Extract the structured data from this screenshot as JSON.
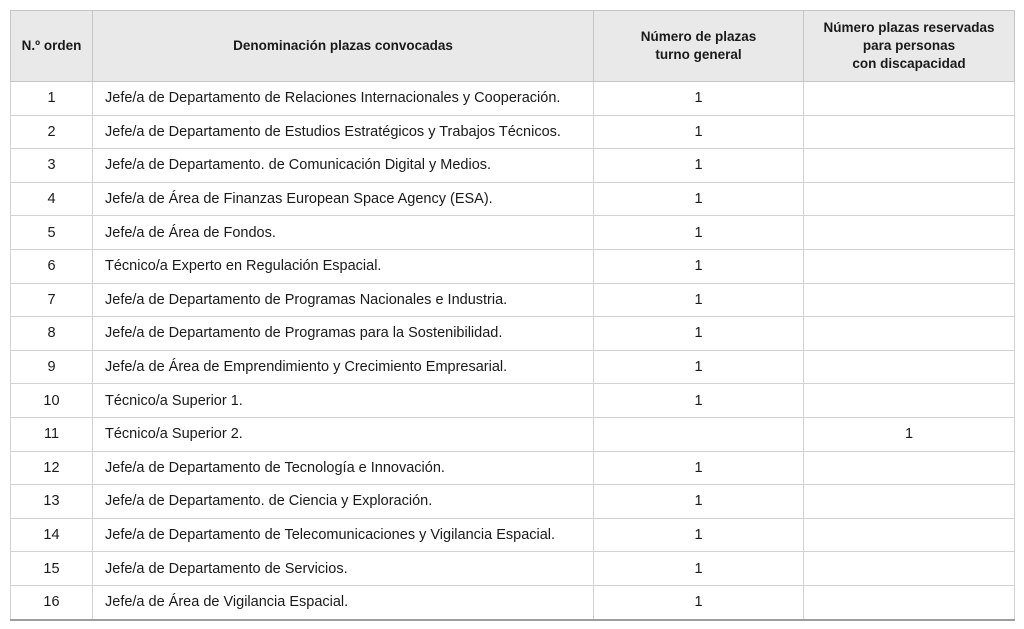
{
  "table": {
    "columns": [
      {
        "label": "N.º orden"
      },
      {
        "label": "Denominación plazas convocadas"
      },
      {
        "label": "Número de plazas\nturno general"
      },
      {
        "label": "Número plazas reservadas\npara personas\ncon discapacidad"
      }
    ],
    "rows": [
      {
        "orden": "1",
        "denominacion": "Jefe/a de Departamento de Relaciones Internacionales y Cooperación.",
        "general": "1",
        "discapacidad": ""
      },
      {
        "orden": "2",
        "denominacion": "Jefe/a de Departamento de Estudios Estratégicos y Trabajos Técnicos.",
        "general": "1",
        "discapacidad": ""
      },
      {
        "orden": "3",
        "denominacion": "Jefe/a de Departamento. de Comunicación Digital y Medios.",
        "general": "1",
        "discapacidad": ""
      },
      {
        "orden": "4",
        "denominacion": "Jefe/a de Área de Finanzas European Space Agency (ESA).",
        "general": "1",
        "discapacidad": ""
      },
      {
        "orden": "5",
        "denominacion": "Jefe/a de Área de Fondos.",
        "general": "1",
        "discapacidad": ""
      },
      {
        "orden": "6",
        "denominacion": "Técnico/a Experto en Regulación Espacial.",
        "general": "1",
        "discapacidad": ""
      },
      {
        "orden": "7",
        "denominacion": "Jefe/a de Departamento de Programas Nacionales e Industria.",
        "general": "1",
        "discapacidad": ""
      },
      {
        "orden": "8",
        "denominacion": "Jefe/a de Departamento de Programas para la Sostenibilidad.",
        "general": "1",
        "discapacidad": ""
      },
      {
        "orden": "9",
        "denominacion": "Jefe/a de Área de Emprendimiento y Crecimiento Empresarial.",
        "general": "1",
        "discapacidad": ""
      },
      {
        "orden": "10",
        "denominacion": "Técnico/a Superior 1.",
        "general": "1",
        "discapacidad": ""
      },
      {
        "orden": "11",
        "denominacion": "Técnico/a Superior 2.",
        "general": "",
        "discapacidad": "1"
      },
      {
        "orden": "12",
        "denominacion": "Jefe/a de Departamento de Tecnología e Innovación.",
        "general": "1",
        "discapacidad": ""
      },
      {
        "orden": "13",
        "denominacion": "Jefe/a de Departamento. de Ciencia y Exploración.",
        "general": "1",
        "discapacidad": ""
      },
      {
        "orden": "14",
        "denominacion": "Jefe/a de Departamento de Telecomunicaciones y Vigilancia Espacial.",
        "general": "1",
        "discapacidad": ""
      },
      {
        "orden": "15",
        "denominacion": "Jefe/a de Departamento de Servicios.",
        "general": "1",
        "discapacidad": ""
      },
      {
        "orden": "16",
        "denominacion": "Jefe/a de Área de Vigilancia Espacial.",
        "general": "1",
        "discapacidad": ""
      }
    ]
  }
}
